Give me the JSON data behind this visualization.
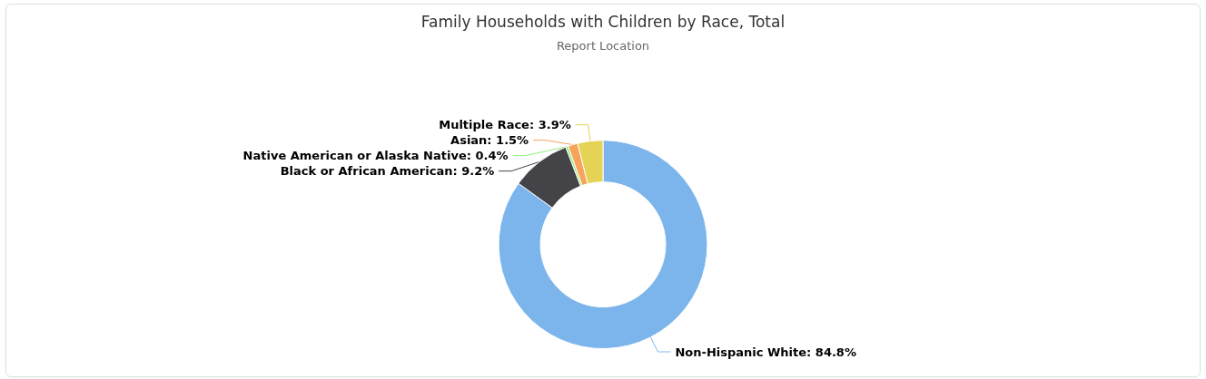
{
  "chart_data": {
    "type": "donut",
    "title": "Family Households with Children by Race, Total",
    "subtitle": "Report Location",
    "categories": [
      "Non-Hispanic White",
      "Black or African American",
      "Native American or Alaska Native",
      "Asian",
      "Multiple Race"
    ],
    "values": [
      84.8,
      9.2,
      0.4,
      1.5,
      3.9
    ],
    "value_labels": [
      "84.8%",
      "9.2%",
      "0.4%",
      "1.5%",
      "3.9%"
    ],
    "colors": [
      "#7cb5ec",
      "#434348",
      "#90ed7d",
      "#f7a35c",
      "#e4d354"
    ],
    "legend": false
  }
}
